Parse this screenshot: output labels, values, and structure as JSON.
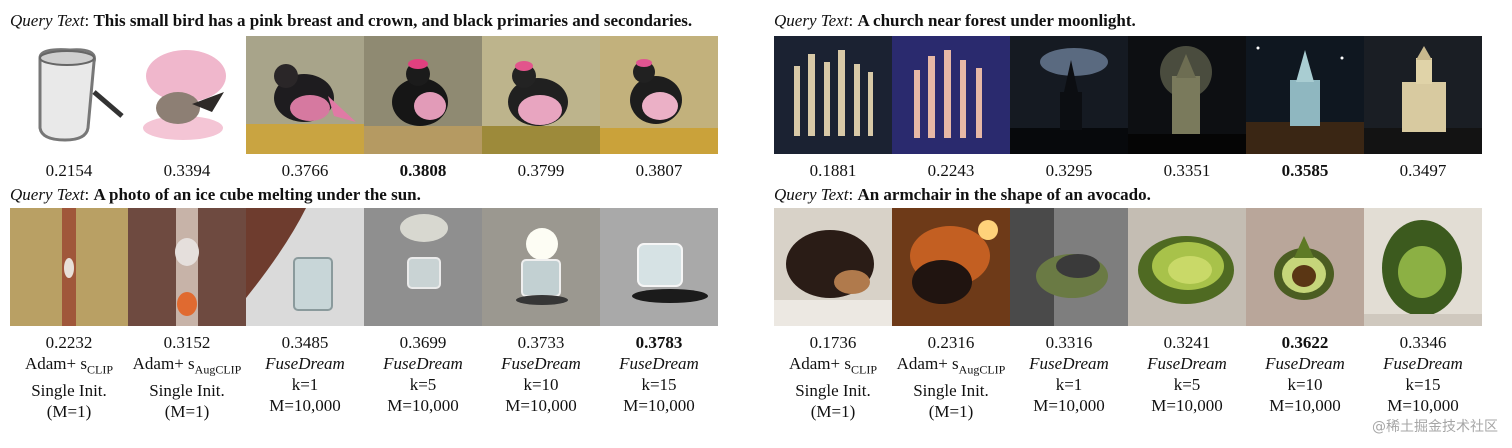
{
  "query_label": "Query Text",
  "panels": [
    {
      "query": "This small bird has a pink breast and crown, and black primaries and secondaries.",
      "images": [
        {
          "icon": "white-mug-image"
        },
        {
          "icon": "pink-bird-sketch-image"
        },
        {
          "icon": "bird-image"
        },
        {
          "icon": "bird-image"
        },
        {
          "icon": "bird-image"
        },
        {
          "icon": "bird-image"
        }
      ],
      "columns": [
        {
          "score": "0.2154",
          "best": false
        },
        {
          "score": "0.3394",
          "best": false
        },
        {
          "score": "0.3766",
          "best": false
        },
        {
          "score": "0.3808",
          "best": true
        },
        {
          "score": "0.3799",
          "best": false
        },
        {
          "score": "0.3807",
          "best": false
        }
      ]
    },
    {
      "query": "A church near forest under moonlight.",
      "images": [
        {
          "icon": "coral-image"
        },
        {
          "icon": "coral-image"
        },
        {
          "icon": "church-night-image"
        },
        {
          "icon": "church-night-image"
        },
        {
          "icon": "church-night-image"
        },
        {
          "icon": "church-night-image"
        }
      ],
      "columns": [
        {
          "score": "0.1881",
          "best": false
        },
        {
          "score": "0.2243",
          "best": false
        },
        {
          "score": "0.3295",
          "best": false
        },
        {
          "score": "0.3351",
          "best": false
        },
        {
          "score": "0.3585",
          "best": true
        },
        {
          "score": "0.3497",
          "best": false
        }
      ]
    },
    {
      "query": "A photo of an ice cube melting under the sun.",
      "images": [
        {
          "icon": "dripping-ice-image"
        },
        {
          "icon": "melting-ice-image"
        },
        {
          "icon": "glass-image"
        },
        {
          "icon": "ice-cube-image"
        },
        {
          "icon": "ice-cube-image"
        },
        {
          "icon": "ice-cube-image"
        }
      ],
      "columns": [
        {
          "score": "0.2232",
          "best": false,
          "method": "Adam+ s",
          "sub": "CLIP",
          "init": "Single Init.",
          "m": "(M=1)"
        },
        {
          "score": "0.3152",
          "best": false,
          "method": "Adam+ s",
          "sub": "AugCLIP",
          "init": "Single Init.",
          "m": "(M=1)"
        },
        {
          "score": "0.3485",
          "best": false,
          "method": "FuseDream",
          "sub": "",
          "init": "k=1",
          "m": "M=10,000"
        },
        {
          "score": "0.3699",
          "best": false,
          "method": "FuseDream",
          "sub": "",
          "init": "k=5",
          "m": "M=10,000"
        },
        {
          "score": "0.3733",
          "best": false,
          "method": "FuseDream",
          "sub": "",
          "init": "k=10",
          "m": "M=10,000"
        },
        {
          "score": "0.3783",
          "best": true,
          "method": "FuseDream",
          "sub": "",
          "init": "k=15",
          "m": "M=10,000"
        }
      ]
    },
    {
      "query": "An armchair in the shape of an avocado.",
      "images": [
        {
          "icon": "dog-image"
        },
        {
          "icon": "dog-image"
        },
        {
          "icon": "avocado-chair-image"
        },
        {
          "icon": "avocado-chair-image"
        },
        {
          "icon": "avocado-chair-image"
        },
        {
          "icon": "avocado-chair-image"
        }
      ],
      "columns": [
        {
          "score": "0.1736",
          "best": false,
          "method": "Adam+ s",
          "sub": "CLIP",
          "init": "Single Init.",
          "m": "(M=1)"
        },
        {
          "score": "0.2316",
          "best": false,
          "method": "Adam+ s",
          "sub": "AugCLIP",
          "init": "Single Init.",
          "m": "(M=1)"
        },
        {
          "score": "0.3316",
          "best": false,
          "method": "FuseDream",
          "sub": "",
          "init": "k=1",
          "m": "M=10,000"
        },
        {
          "score": "0.3241",
          "best": false,
          "method": "FuseDream",
          "sub": "",
          "init": "k=5",
          "m": "M=10,000"
        },
        {
          "score": "0.3622",
          "best": true,
          "method": "FuseDream",
          "sub": "",
          "init": "k=10",
          "m": "M=10,000"
        },
        {
          "score": "0.3346",
          "best": false,
          "method": "FuseDream",
          "sub": "",
          "init": "k=15",
          "m": "M=10,000"
        }
      ]
    }
  ],
  "watermark": "@稀土掘金技术社区"
}
